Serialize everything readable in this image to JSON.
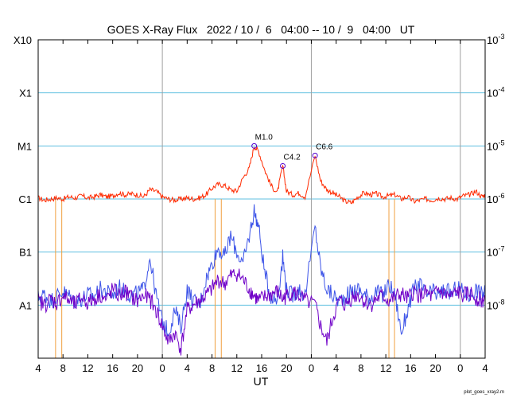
{
  "chart_data": {
    "type": "line",
    "title": "GOES X-Ray Flux   2022 / 10 /  6   04:00 -- 10 /  9   04:00   UT",
    "xlabel": "UT",
    "footer": "plot_goes_xray2.m",
    "x_range_hours": [
      0,
      72
    ],
    "x_ticks": [
      {
        "h": 0,
        "label": "4"
      },
      {
        "h": 4,
        "label": "8"
      },
      {
        "h": 8,
        "label": "12"
      },
      {
        "h": 12,
        "label": "16"
      },
      {
        "h": 16,
        "label": "20"
      },
      {
        "h": 20,
        "label": "0"
      },
      {
        "h": 24,
        "label": "4"
      },
      {
        "h": 28,
        "label": "8"
      },
      {
        "h": 32,
        "label": "12"
      },
      {
        "h": 36,
        "label": "16"
      },
      {
        "h": 40,
        "label": "20"
      },
      {
        "h": 44,
        "label": "0"
      },
      {
        "h": 48,
        "label": "4"
      },
      {
        "h": 52,
        "label": "8"
      },
      {
        "h": 56,
        "label": "12"
      },
      {
        "h": 60,
        "label": "16"
      },
      {
        "h": 64,
        "label": "20"
      },
      {
        "h": 68,
        "label": "0"
      },
      {
        "h": 72,
        "label": "4"
      }
    ],
    "day_boundaries_hours": [
      20,
      44,
      68
    ],
    "y_scale": "log",
    "y_range": [
      1e-09,
      0.001
    ],
    "left_labels": [
      {
        "v": 1e-08,
        "label": "A1"
      },
      {
        "v": 1e-07,
        "label": "B1"
      },
      {
        "v": 1e-06,
        "label": "C1"
      },
      {
        "v": 1e-05,
        "label": "M1"
      },
      {
        "v": 0.0001,
        "label": "X1"
      },
      {
        "v": 0.001,
        "label": "X10"
      }
    ],
    "right_labels": [
      {
        "v": 1e-08,
        "base": "10",
        "exp": "-8"
      },
      {
        "v": 1e-07,
        "base": "10",
        "exp": "-7"
      },
      {
        "v": 1e-06,
        "base": "10",
        "exp": "-6"
      },
      {
        "v": 1e-05,
        "base": "10",
        "exp": "-5"
      },
      {
        "v": 0.0001,
        "base": "10",
        "exp": "-4"
      },
      {
        "v": 0.001,
        "base": "10",
        "exp": "-3"
      }
    ],
    "grid_lines": [
      1e-08,
      1e-07,
      1e-06,
      1e-05,
      0.0001
    ],
    "flares": [
      {
        "h": 34.8,
        "v": 1e-05,
        "label": "M1.0"
      },
      {
        "h": 39.4,
        "v": 4.2e-06,
        "label": "C4.2"
      },
      {
        "h": 44.6,
        "v": 6.6e-06,
        "label": "C6.6"
      }
    ],
    "data_gaps_hours": [
      2.8,
      3.8,
      28.5,
      29.5,
      56.5,
      57.4
    ],
    "series": [
      {
        "color": "#ff2a00",
        "points": [
          [
            0,
            1.05e-06
          ],
          [
            1,
            9.5e-07
          ],
          [
            2,
            1e-06
          ],
          [
            3,
            1.05e-06
          ],
          [
            4,
            1e-06
          ],
          [
            5,
            1.1e-06
          ],
          [
            6,
            1.05e-06
          ],
          [
            7,
            1.15e-06
          ],
          [
            8,
            1.05e-06
          ],
          [
            9,
            1.1e-06
          ],
          [
            10,
            1.2e-06
          ],
          [
            11,
            1.1e-06
          ],
          [
            12,
            1.15e-06
          ],
          [
            13,
            1.3e-06
          ],
          [
            14,
            1.2e-06
          ],
          [
            15,
            1.25e-06
          ],
          [
            16,
            1.2e-06
          ],
          [
            17,
            1.1e-06
          ],
          [
            18,
            1.5e-06
          ],
          [
            19,
            1.4e-06
          ],
          [
            20,
            1.1e-06
          ],
          [
            21,
            1e-06
          ],
          [
            22,
            9.5e-07
          ],
          [
            23,
            1e-06
          ],
          [
            24,
            1.05e-06
          ],
          [
            25,
            1e-06
          ],
          [
            26,
            1.05e-06
          ],
          [
            27,
            1.2e-06
          ],
          [
            28,
            1.6e-06
          ],
          [
            29,
            1.9e-06
          ],
          [
            30,
            1.8e-06
          ],
          [
            31,
            1.5e-06
          ],
          [
            32,
            1.4e-06
          ],
          [
            33,
            2.5e-06
          ],
          [
            34,
            3.8e-06
          ],
          [
            34.8,
            1e-05
          ],
          [
            35.5,
            8e-06
          ],
          [
            36.5,
            3.5e-06
          ],
          [
            37.5,
            1.8e-06
          ],
          [
            38.5,
            1.3e-06
          ],
          [
            39.4,
            4.2e-06
          ],
          [
            40,
            1.4e-06
          ],
          [
            41,
            1.2e-06
          ],
          [
            42,
            1.3e-06
          ],
          [
            43,
            1.1e-06
          ],
          [
            44.6,
            6.6e-06
          ],
          [
            45.5,
            2.2e-06
          ],
          [
            46.5,
            1.5e-06
          ],
          [
            47.5,
            1.3e-06
          ],
          [
            48.5,
            1.1e-06
          ],
          [
            49.5,
            9e-07
          ],
          [
            50.5,
            8.5e-07
          ],
          [
            51.5,
            1.1e-06
          ],
          [
            52.5,
            1.3e-06
          ],
          [
            53.5,
            1.2e-06
          ],
          [
            54.5,
            1.25e-06
          ],
          [
            55.5,
            1.1e-06
          ],
          [
            56.5,
            1.15e-06
          ],
          [
            57.5,
            1.2e-06
          ],
          [
            58.5,
            1e-06
          ],
          [
            59.5,
            1.1e-06
          ],
          [
            60.5,
            9e-07
          ],
          [
            61.5,
            9.5e-07
          ],
          [
            62.5,
            1e-06
          ],
          [
            63.5,
            9.5e-07
          ],
          [
            64.5,
            1.05e-06
          ],
          [
            65.5,
            1e-06
          ],
          [
            66.5,
            1.05e-06
          ],
          [
            67.5,
            1e-06
          ],
          [
            68.5,
            1.15e-06
          ],
          [
            69.5,
            1.2e-06
          ],
          [
            70.5,
            1.4e-06
          ],
          [
            71.5,
            1.1e-06
          ],
          [
            72,
            1.2e-06
          ]
        ]
      },
      {
        "color": "#3d54e8",
        "points": [
          [
            0,
            1.4e-08
          ],
          [
            1,
            1.6e-08
          ],
          [
            2,
            1.2e-08
          ],
          [
            3,
            1.5e-08
          ],
          [
            4,
            1.8e-08
          ],
          [
            5,
            1.5e-08
          ],
          [
            6,
            1.2e-08
          ],
          [
            7,
            1.3e-08
          ],
          [
            8,
            1.6e-08
          ],
          [
            9,
            1.5e-08
          ],
          [
            10,
            2e-08
          ],
          [
            11,
            1.8e-08
          ],
          [
            12,
            1.5e-08
          ],
          [
            13,
            2.2e-08
          ],
          [
            14,
            1.8e-08
          ],
          [
            15,
            1.5e-08
          ],
          [
            16,
            1.7e-08
          ],
          [
            17,
            2e-08
          ],
          [
            18,
            8e-08
          ],
          [
            19,
            1.5e-08
          ],
          [
            20,
            5e-09
          ],
          [
            21,
            3e-09
          ],
          [
            22,
            8e-09
          ],
          [
            23,
            4e-09
          ],
          [
            24,
            2e-08
          ],
          [
            25,
            1.2e-08
          ],
          [
            26,
            1e-08
          ],
          [
            27,
            3e-08
          ],
          [
            28,
            6e-08
          ],
          [
            29,
            1.2e-07
          ],
          [
            30,
            8e-08
          ],
          [
            31,
            2e-07
          ],
          [
            32,
            1e-07
          ],
          [
            33,
            6e-08
          ],
          [
            34,
            2e-07
          ],
          [
            34.8,
            6e-07
          ],
          [
            35.5,
            3e-07
          ],
          [
            36.5,
            4e-08
          ],
          [
            37.5,
            1.5e-08
          ],
          [
            38.5,
            1.2e-08
          ],
          [
            39.4,
            8e-08
          ],
          [
            40,
            2e-08
          ],
          [
            41,
            1.5e-08
          ],
          [
            42,
            2e-08
          ],
          [
            43,
            1.5e-08
          ],
          [
            44.6,
            3e-07
          ],
          [
            45.5,
            5e-08
          ],
          [
            46.5,
            2e-08
          ],
          [
            47.5,
            1.5e-08
          ],
          [
            48.5,
            1.2e-08
          ],
          [
            49.5,
            1.5e-08
          ],
          [
            50.5,
            1.8e-08
          ],
          [
            51.5,
            2e-08
          ],
          [
            52.5,
            1.6e-08
          ],
          [
            53.5,
            1.4e-08
          ],
          [
            54.5,
            1.8e-08
          ],
          [
            55.5,
            1.5e-08
          ],
          [
            56.5,
            2.5e-08
          ],
          [
            57.5,
            1.5e-08
          ],
          [
            58.5,
            3e-09
          ],
          [
            59.5,
            8e-09
          ],
          [
            60.5,
            2e-08
          ],
          [
            61.5,
            2.5e-08
          ],
          [
            62.5,
            1.5e-08
          ],
          [
            63.5,
            1.8e-08
          ],
          [
            64.5,
            1.5e-08
          ],
          [
            65.5,
            2e-08
          ],
          [
            66.5,
            1.6e-08
          ],
          [
            67.5,
            2.2e-08
          ],
          [
            68.5,
            1.8e-08
          ],
          [
            69.5,
            1.5e-08
          ],
          [
            70.5,
            2e-08
          ],
          [
            71.5,
            1.6e-08
          ],
          [
            72,
            1.8e-08
          ]
        ]
      },
      {
        "color": "#7000c8",
        "points": [
          [
            0,
            1.2e-08
          ],
          [
            1,
            1e-08
          ],
          [
            2,
            1.3e-08
          ],
          [
            3,
            1.1e-08
          ],
          [
            4,
            1.5e-08
          ],
          [
            5,
            1.2e-08
          ],
          [
            6,
            1e-08
          ],
          [
            7,
            1.4e-08
          ],
          [
            8,
            1.1e-08
          ],
          [
            9,
            1.3e-08
          ],
          [
            10,
            1.6e-08
          ],
          [
            11,
            1.2e-08
          ],
          [
            12,
            2e-08
          ],
          [
            13,
            1.5e-08
          ],
          [
            14,
            1.8e-08
          ],
          [
            15,
            1.4e-08
          ],
          [
            16,
            1.2e-08
          ],
          [
            17,
            1.5e-08
          ],
          [
            18,
            1.3e-08
          ],
          [
            19,
            8e-09
          ],
          [
            20,
            4e-09
          ],
          [
            21,
            2e-09
          ],
          [
            22,
            3e-09
          ],
          [
            23,
            1.5e-09
          ],
          [
            24,
            8e-09
          ],
          [
            25,
            1e-08
          ],
          [
            26,
            1.2e-08
          ],
          [
            27,
            1.5e-08
          ],
          [
            28,
            2e-08
          ],
          [
            29,
            3e-08
          ],
          [
            30,
            2.5e-08
          ],
          [
            31,
            3.5e-08
          ],
          [
            32,
            4e-08
          ],
          [
            33,
            3e-08
          ],
          [
            34,
            2e-08
          ],
          [
            34.8,
            1.5e-08
          ],
          [
            35.5,
            1.2e-08
          ],
          [
            36.5,
            1.4e-08
          ],
          [
            37.5,
            1.6e-08
          ],
          [
            38.5,
            1.8e-08
          ],
          [
            39.4,
            1.3e-08
          ],
          [
            40,
            1.5e-08
          ],
          [
            41,
            1.8e-08
          ],
          [
            42,
            1.5e-08
          ],
          [
            43,
            1.2e-08
          ],
          [
            44.6,
            1e-08
          ],
          [
            45.5,
            4e-09
          ],
          [
            46.5,
            2e-09
          ],
          [
            47.5,
            6e-09
          ],
          [
            48.5,
            1.2e-08
          ],
          [
            49.5,
            1e-08
          ],
          [
            50.5,
            1.4e-08
          ],
          [
            51.5,
            1.6e-08
          ],
          [
            52.5,
            1.2e-08
          ],
          [
            53.5,
            1e-08
          ],
          [
            54.5,
            1.3e-08
          ],
          [
            55.5,
            1.5e-08
          ],
          [
            56.5,
            1.2e-08
          ],
          [
            57.5,
            1.4e-08
          ],
          [
            58.5,
            1.6e-08
          ],
          [
            59.5,
            1.3e-08
          ],
          [
            60.5,
            1.8e-08
          ],
          [
            61.5,
            1.5e-08
          ],
          [
            62.5,
            1.7e-08
          ],
          [
            63.5,
            1.4e-08
          ],
          [
            64.5,
            1.9e-08
          ],
          [
            65.5,
            1.6e-08
          ],
          [
            66.5,
            1.4e-08
          ],
          [
            67.5,
            1.8e-08
          ],
          [
            68.5,
            1.5e-08
          ],
          [
            69.5,
            1.7e-08
          ],
          [
            70.5,
            1.4e-08
          ],
          [
            71.5,
            1.2e-08
          ],
          [
            72,
            1.3e-08
          ]
        ]
      }
    ],
    "colors": {
      "grid": "#5fbfe0",
      "day_line": "#a0a0a0",
      "gap": "#f0a040",
      "marker": "#5000d0"
    }
  }
}
